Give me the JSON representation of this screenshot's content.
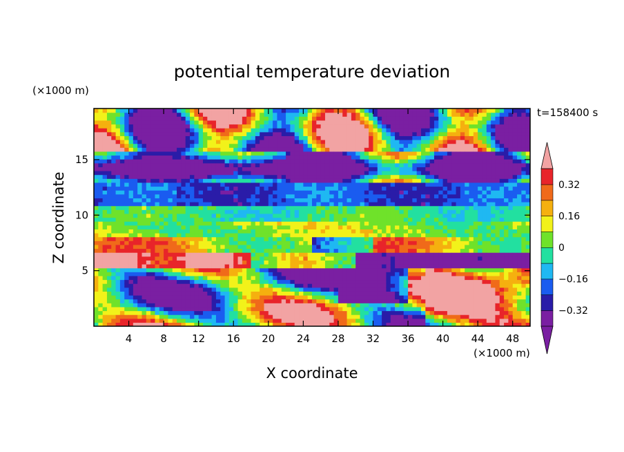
{
  "chart_data": {
    "type": "heatmap",
    "title": "potential temperature deviation",
    "xlabel": "X coordinate",
    "ylabel": "Z coordinate",
    "x_unit": "(×1000 m)",
    "y_unit": "(×1000 m)",
    "time_label": "t=158400 s",
    "xlim": [
      0,
      50
    ],
    "ylim": [
      0,
      19.6
    ],
    "x_ticks": [
      4,
      8,
      12,
      16,
      20,
      24,
      28,
      32,
      36,
      40,
      44,
      48
    ],
    "y_ticks": [
      5,
      10,
      15
    ],
    "colorbar": {
      "levels": [
        -0.4,
        -0.32,
        -0.24,
        -0.16,
        -0.08,
        0,
        0.08,
        0.16,
        0.24,
        0.32,
        0.4
      ],
      "tick_labels": [
        "0.32",
        "0.16",
        "0",
        "−0.16",
        "−0.32"
      ],
      "tick_values": [
        0.32,
        0.16,
        0,
        -0.16,
        -0.32
      ],
      "extend": "both",
      "colors_low_to_high": [
        "#7a1fa2",
        "#2a1ca8",
        "#1a5cf0",
        "#1fb8f2",
        "#22e0a0",
        "#6fe22a",
        "#f2f21a",
        "#f5b00f",
        "#f06a1a",
        "#e8242a"
      ],
      "over_color": "#f2a3a3"
    },
    "grid": false
  }
}
